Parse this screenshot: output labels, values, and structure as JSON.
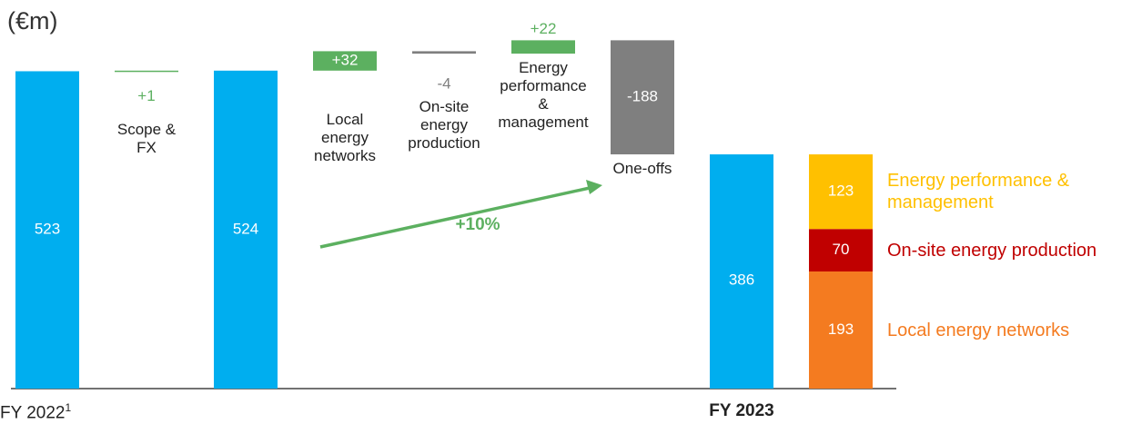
{
  "unit_label": "(€m)",
  "chart_data": {
    "type": "waterfall",
    "categories": [
      "FY 2022",
      "Scope & FX",
      null,
      "Local energy networks",
      "On-site energy production",
      "Energy performance & management",
      "One-offs",
      "FY 2023"
    ],
    "measure": [
      "total",
      "relative",
      "total",
      "relative",
      "relative",
      "relative",
      "relative",
      "total"
    ],
    "values": [
      523,
      1,
      524,
      32,
      -4,
      22,
      -188,
      386
    ],
    "value_labels": [
      "523",
      "+1",
      "524",
      "+32",
      "-4",
      "+22",
      "-188",
      "386"
    ],
    "footnote_marker": "1",
    "colors": {
      "total": "#00aeef",
      "increase": "#5cb060",
      "decrease": "#7f7f7f"
    },
    "breakdown": {
      "series": [
        {
          "name": "Local energy networks",
          "color": "#f47b20",
          "values": [
            193
          ]
        },
        {
          "name": "On-site energy production",
          "color": "#c00000",
          "values": [
            70
          ]
        },
        {
          "name": "Energy performance & management",
          "color": "#ffc000",
          "values": [
            123
          ]
        }
      ]
    },
    "annotation": "+10%",
    "ylim": [
      0,
      600
    ]
  }
}
